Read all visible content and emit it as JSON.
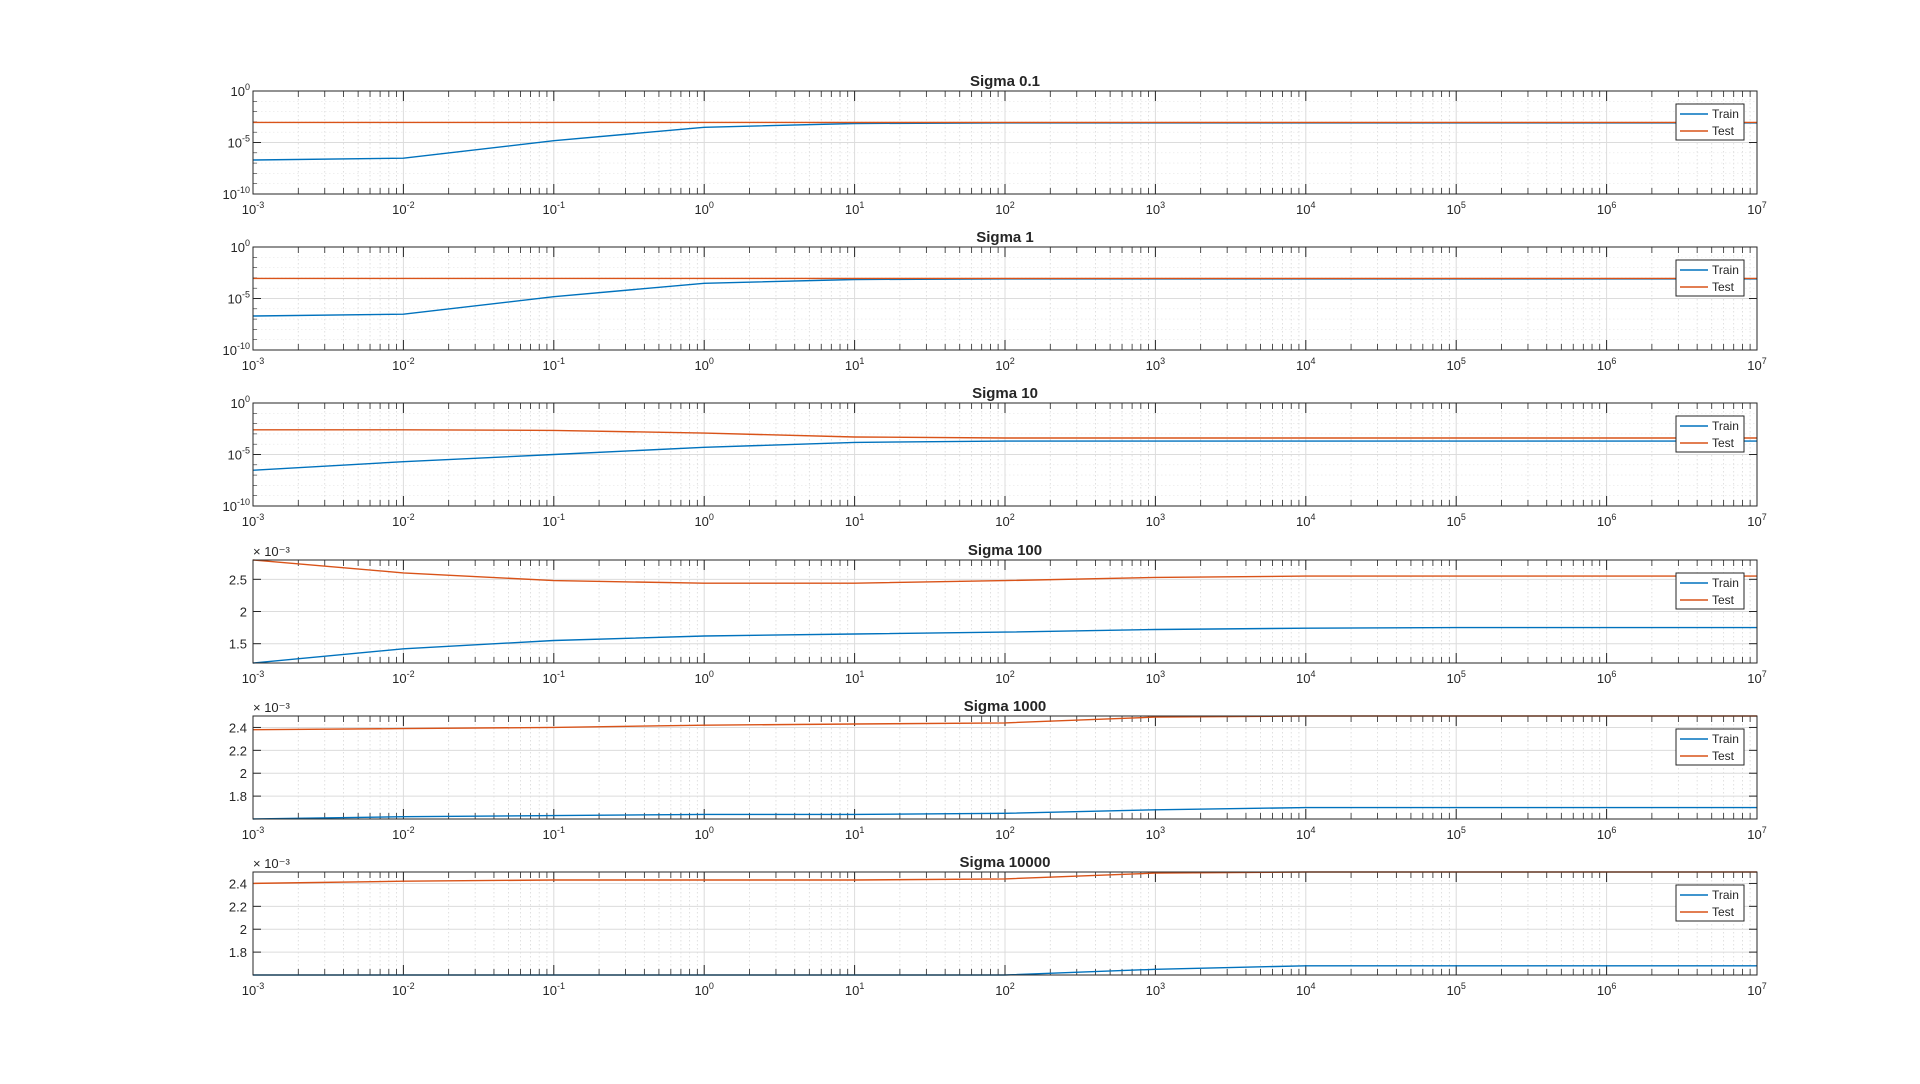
{
  "chart_data": [
    {
      "type": "line",
      "title": "Sigma 0.1",
      "yscale": "log",
      "ylim": [
        1e-10,
        1
      ],
      "yticks": [
        {
          "value": 1e-10,
          "base": "10",
          "exp": "-10"
        },
        {
          "value": 1e-05,
          "base": "10",
          "exp": "-5"
        },
        {
          "value": 1,
          "base": "10",
          "exp": "0"
        }
      ],
      "y_multiplier": "",
      "x": [
        0.001,
        0.01,
        0.1,
        1,
        10,
        100,
        1000,
        10000,
        100000,
        1000000,
        10000000
      ],
      "series": [
        {
          "name": "Train",
          "color": "#0072BD",
          "values": [
            2e-07,
            3e-07,
            1.5e-05,
            0.0003,
            0.0007,
            0.0008,
            0.0008,
            0.0008,
            0.0008,
            0.0008,
            0.0008
          ]
        },
        {
          "name": "Test",
          "color": "#D95319",
          "values": 0.0009
        }
      ]
    },
    {
      "type": "line",
      "title": "Sigma 1",
      "yscale": "log",
      "ylim": [
        1e-10,
        1
      ],
      "yticks": [
        {
          "value": 1e-10,
          "base": "10",
          "exp": "-10"
        },
        {
          "value": 1e-05,
          "base": "10",
          "exp": "-5"
        },
        {
          "value": 1,
          "base": "10",
          "exp": "0"
        }
      ],
      "y_multiplier": "",
      "x": [
        0.001,
        0.01,
        0.1,
        1,
        10,
        100,
        1000,
        10000,
        100000,
        1000000,
        10000000
      ],
      "series": [
        {
          "name": "Train",
          "color": "#0072BD",
          "values": [
            2e-07,
            3e-07,
            1.5e-05,
            0.0003,
            0.0007,
            0.0008,
            0.0008,
            0.0008,
            0.0008,
            0.0008,
            0.0008
          ]
        },
        {
          "name": "Test",
          "color": "#D95319",
          "values": 0.0009
        }
      ]
    },
    {
      "type": "line",
      "title": "Sigma 10",
      "yscale": "log",
      "ylim": [
        1e-10,
        1
      ],
      "yticks": [
        {
          "value": 1e-10,
          "base": "10",
          "exp": "-10"
        },
        {
          "value": 1e-05,
          "base": "10",
          "exp": "-5"
        },
        {
          "value": 1,
          "base": "10",
          "exp": "0"
        }
      ],
      "y_multiplier": "",
      "x": [
        0.001,
        0.01,
        0.1,
        1,
        10,
        100,
        1000,
        10000,
        100000,
        1000000,
        10000000
      ],
      "series": [
        {
          "name": "Train",
          "color": "#0072BD",
          "values": [
            3e-07,
            2e-06,
            1e-05,
            5e-05,
            0.00015,
            0.0002,
            0.0002,
            0.0002,
            0.0002,
            0.0002,
            0.0002
          ]
        },
        {
          "name": "Test",
          "color": "#D95319",
          "values": [
            0.0025,
            0.0025,
            0.0022,
            0.0012,
            0.0005,
            0.0004,
            0.0004,
            0.0004,
            0.0004,
            0.0004,
            0.0004
          ]
        }
      ]
    },
    {
      "type": "line",
      "title": "Sigma 100",
      "yscale": "linear",
      "ylim": [
        0.0012,
        0.0028
      ],
      "yticks": [
        {
          "value": 0.0015,
          "label": "1.5"
        },
        {
          "value": 0.002,
          "label": "2"
        },
        {
          "value": 0.0025,
          "label": "2.5"
        }
      ],
      "y_multiplier": "× 10⁻³",
      "x": [
        0.001,
        0.01,
        0.1,
        1,
        10,
        100,
        1000,
        10000,
        100000,
        1000000,
        10000000
      ],
      "series": [
        {
          "name": "Train",
          "color": "#0072BD",
          "values": [
            0.0012,
            0.00142,
            0.00155,
            0.00162,
            0.00165,
            0.00168,
            0.00172,
            0.00174,
            0.00175,
            0.00175,
            0.00175
          ]
        },
        {
          "name": "Test",
          "color": "#D95319",
          "values": [
            0.0028,
            0.0026,
            0.00248,
            0.00244,
            0.00244,
            0.00248,
            0.00253,
            0.00255,
            0.00255,
            0.00255,
            0.00255
          ]
        }
      ]
    },
    {
      "type": "line",
      "title": "Sigma 1000",
      "yscale": "linear",
      "ylim": [
        0.0016,
        0.0025
      ],
      "yticks": [
        {
          "value": 0.0018,
          "label": "1.8"
        },
        {
          "value": 0.002,
          "label": "2"
        },
        {
          "value": 0.0022,
          "label": "2.2"
        },
        {
          "value": 0.0024,
          "label": "2.4"
        }
      ],
      "y_multiplier": "× 10⁻³",
      "x": [
        0.001,
        0.01,
        0.1,
        1,
        10,
        100,
        1000,
        10000,
        100000,
        1000000,
        10000000
      ],
      "series": [
        {
          "name": "Train",
          "color": "#0072BD",
          "values": [
            0.0016,
            0.00162,
            0.00163,
            0.00164,
            0.00164,
            0.00165,
            0.00168,
            0.0017,
            0.0017,
            0.0017,
            0.0017
          ]
        },
        {
          "name": "Test",
          "color": "#D95319",
          "values": [
            0.00238,
            0.00239,
            0.0024,
            0.00242,
            0.00243,
            0.00244,
            0.00249,
            0.0025,
            0.0025,
            0.0025,
            0.0025
          ]
        }
      ]
    },
    {
      "type": "line",
      "title": "Sigma 10000",
      "yscale": "linear",
      "ylim": [
        0.0016,
        0.0025
      ],
      "yticks": [
        {
          "value": 0.0018,
          "label": "1.8"
        },
        {
          "value": 0.002,
          "label": "2"
        },
        {
          "value": 0.0022,
          "label": "2.2"
        },
        {
          "value": 0.0024,
          "label": "2.4"
        }
      ],
      "y_multiplier": "× 10⁻³",
      "x": [
        0.001,
        0.01,
        0.1,
        1,
        10,
        100,
        1000,
        10000,
        100000,
        1000000,
        10000000
      ],
      "series": [
        {
          "name": "Train",
          "color": "#0072BD",
          "values": [
            0.0016,
            0.0016,
            0.0016,
            0.0016,
            0.0016,
            0.0016,
            0.00165,
            0.00168,
            0.00168,
            0.00168,
            0.00168
          ]
        },
        {
          "name": "Test",
          "color": "#D95319",
          "values": [
            0.0024,
            0.00242,
            0.00243,
            0.00243,
            0.00243,
            0.00244,
            0.00249,
            0.0025,
            0.0025,
            0.0025,
            0.0025
          ]
        }
      ]
    }
  ],
  "x_axis": {
    "scale": "log",
    "xlim": [
      0.001,
      10000000
    ],
    "ticks": [
      {
        "value": 0.001,
        "base": "10",
        "exp": "-3"
      },
      {
        "value": 0.01,
        "base": "10",
        "exp": "-2"
      },
      {
        "value": 0.1,
        "base": "10",
        "exp": "-1"
      },
      {
        "value": 1,
        "base": "10",
        "exp": "0"
      },
      {
        "value": 10,
        "base": "10",
        "exp": "1"
      },
      {
        "value": 100,
        "base": "10",
        "exp": "2"
      },
      {
        "value": 1000,
        "base": "10",
        "exp": "3"
      },
      {
        "value": 10000,
        "base": "10",
        "exp": "4"
      },
      {
        "value": 100000,
        "base": "10",
        "exp": "5"
      },
      {
        "value": 1000000,
        "base": "10",
        "exp": "6"
      },
      {
        "value": 10000000,
        "base": "10",
        "exp": "7"
      }
    ]
  },
  "legend": {
    "placement": "top-right",
    "entries": [
      "Train",
      "Test"
    ]
  },
  "grid": true
}
